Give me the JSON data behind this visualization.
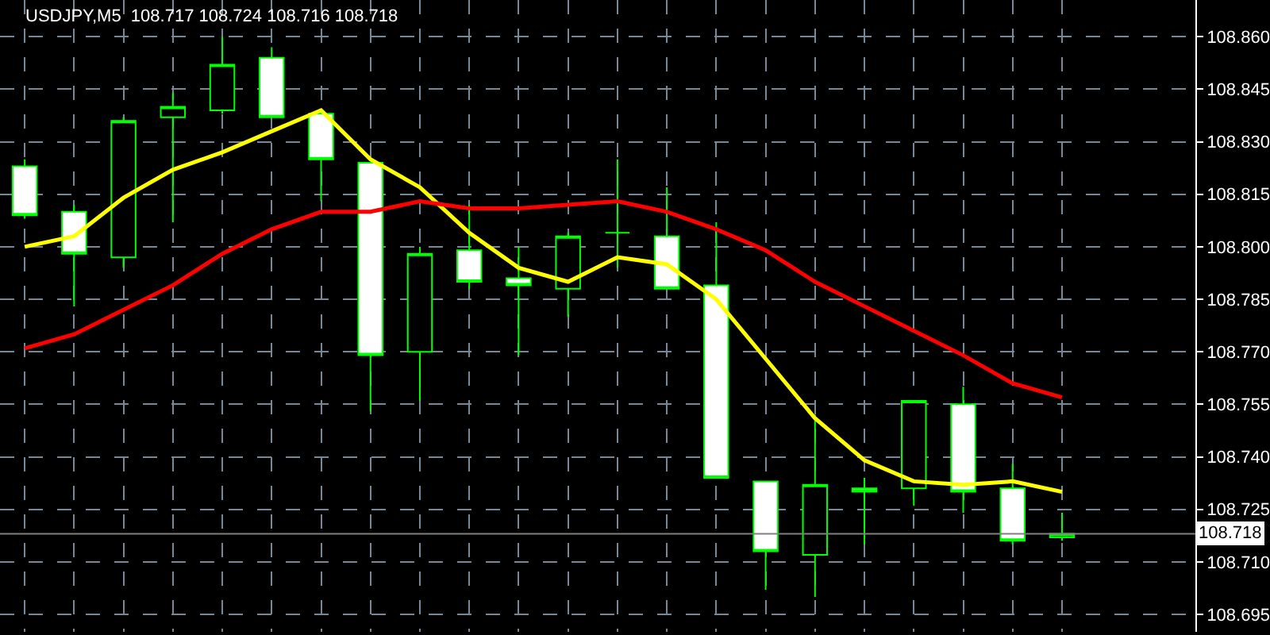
{
  "chart_data": {
    "type": "candlestick",
    "title": "USDJPY,M5  108.717 108.724 108.716 108.718",
    "categories": [
      null,
      null,
      null,
      null,
      null,
      null,
      null,
      null,
      null,
      null,
      null,
      null,
      null,
      null,
      null,
      null,
      null,
      null,
      null,
      null,
      null,
      null
    ],
    "ohlc": [
      [
        108.823,
        108.825,
        108.808,
        108.809
      ],
      [
        108.81,
        108.812,
        108.783,
        108.798
      ],
      [
        108.797,
        108.837,
        108.794,
        108.836
      ],
      [
        108.837,
        108.844,
        108.807,
        108.84
      ],
      [
        108.839,
        108.86,
        108.838,
        108.852
      ],
      [
        108.854,
        108.857,
        108.837,
        108.837
      ],
      [
        108.838,
        108.838,
        108.813,
        108.825
      ],
      [
        108.824,
        108.824,
        108.753,
        108.769
      ],
      [
        108.77,
        108.8,
        108.756,
        108.798
      ],
      [
        108.799,
        108.812,
        108.788,
        108.79
      ],
      [
        108.791,
        108.8,
        108.769,
        108.789
      ],
      [
        108.788,
        108.804,
        108.78,
        108.803
      ],
      [
        108.804,
        108.825,
        108.794,
        108.804
      ],
      [
        108.803,
        108.817,
        108.788,
        108.788
      ],
      [
        108.789,
        108.807,
        108.734,
        108.734
      ],
      [
        108.733,
        108.733,
        108.702,
        108.713
      ],
      [
        108.712,
        108.752,
        108.7,
        108.732
      ],
      [
        108.731,
        108.734,
        108.715,
        108.73
      ],
      [
        108.731,
        108.756,
        108.726,
        108.756
      ],
      [
        108.755,
        108.76,
        108.724,
        108.73
      ],
      [
        108.731,
        108.738,
        108.715,
        108.716
      ],
      [
        108.717,
        108.724,
        108.716,
        108.718
      ]
    ],
    "series": [
      {
        "type": "line",
        "color": "#ffff00",
        "values": [
          108.8,
          108.803,
          108.814,
          108.822,
          108.827,
          108.833,
          108.839,
          108.825,
          108.817,
          108.804,
          108.794,
          108.79,
          108.797,
          108.795,
          108.785,
          108.768,
          108.751,
          108.739,
          108.733,
          108.732,
          108.733,
          108.73
        ]
      },
      {
        "type": "line",
        "color": "#ff0000",
        "values": [
          108.771,
          108.775,
          108.782,
          108.789,
          108.798,
          108.805,
          108.81,
          108.81,
          108.813,
          108.811,
          108.811,
          108.812,
          108.813,
          108.81,
          108.805,
          108.799,
          108.79,
          108.783,
          108.776,
          108.769,
          108.761,
          108.757
        ]
      }
    ],
    "ylim": [
      108.69,
      108.8705
    ],
    "yticks": [
      {
        "value": 108.695,
        "label": "108.695"
      },
      {
        "value": 108.71,
        "label": "108.710"
      },
      {
        "value": 108.725,
        "label": "108.725"
      },
      {
        "value": 108.74,
        "label": "108.740"
      },
      {
        "value": 108.755,
        "label": "108.755"
      },
      {
        "value": 108.77,
        "label": "108.770"
      },
      {
        "value": 108.785,
        "label": "108.785"
      },
      {
        "value": 108.8,
        "label": "108.800"
      },
      {
        "value": 108.815,
        "label": "108.815"
      },
      {
        "value": 108.83,
        "label": "108.830"
      },
      {
        "value": 108.845,
        "label": "108.845"
      },
      {
        "value": 108.86,
        "label": "108.860"
      }
    ],
    "ref_lines": [
      {
        "axis": "y",
        "value": 108.718,
        "label": "108.718",
        "color": "#808080"
      }
    ],
    "tick_labels": "y",
    "grid": true
  }
}
